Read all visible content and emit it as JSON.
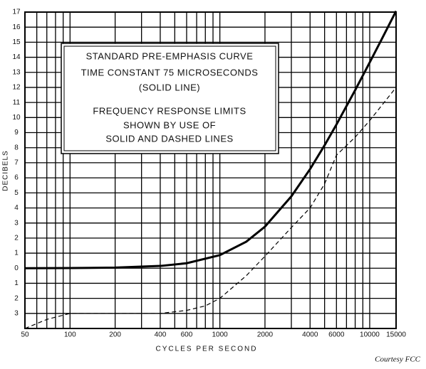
{
  "chart_data": {
    "type": "line",
    "xlabel": "CYCLES PER SECOND",
    "ylabel": "DECIBELS",
    "credit": "Courtesy FCC",
    "annotations": [
      "STANDARD PRE-EMPHASIS CURVE",
      "TIME CONSTANT 75 MICROSECONDS",
      "(SOLID LINE)",
      "FREQUENCY RESPONSE LIMITS",
      "SHOWN BY USE OF",
      "SOLID AND DASHED LINES"
    ],
    "xscale": "log",
    "xlim": [
      50,
      15000
    ],
    "ylim": [
      -4,
      17
    ],
    "xticks": [
      50,
      100,
      200,
      400,
      600,
      1000,
      2000,
      4000,
      6000,
      10000,
      15000
    ],
    "xgrid": [
      50,
      60,
      70,
      80,
      90,
      100,
      200,
      300,
      400,
      500,
      600,
      700,
      800,
      900,
      1000,
      2000,
      3000,
      4000,
      5000,
      6000,
      7000,
      8000,
      9000,
      10000,
      15000
    ],
    "yticks": [
      {
        "value": -3,
        "label": "3"
      },
      {
        "value": -2,
        "label": "2"
      },
      {
        "value": -1,
        "label": "1"
      },
      0,
      1,
      2,
      3,
      4,
      5,
      6,
      7,
      8,
      9,
      10,
      11,
      12,
      13,
      14,
      15,
      16,
      17
    ],
    "ygrid": [
      -4,
      -3,
      -2,
      -1,
      0,
      1,
      2,
      3,
      4,
      5,
      6,
      7,
      8,
      9,
      10,
      11,
      12,
      13,
      14,
      15,
      16,
      17
    ],
    "grid": true,
    "series": [
      {
        "color": "#000",
        "style": "solid",
        "x": [
          50,
          100,
          200,
          400,
          600,
          1000,
          1500,
          2000,
          3000,
          4000,
          5000,
          6000,
          8000,
          10000,
          12000,
          15000
        ],
        "values": [
          0.0,
          0.01,
          0.04,
          0.15,
          0.33,
          0.87,
          1.76,
          2.76,
          4.77,
          6.58,
          8.16,
          9.54,
          11.82,
          13.66,
          15.18,
          17.07
        ]
      },
      {
        "color": "#000",
        "style": "dashed",
        "x": [
          50,
          70,
          100,
          200,
          400,
          600,
          800,
          1000,
          1500,
          2000,
          3000,
          4000,
          5000,
          6000,
          8000,
          10000,
          15000
        ],
        "values": [
          -4,
          -3.4,
          -3,
          -3,
          -3,
          -2.8,
          -2.5,
          -2,
          -0.5,
          0.8,
          2.7,
          4.0,
          5.6,
          7.5,
          8.7,
          9.8,
          12
        ]
      }
    ]
  }
}
